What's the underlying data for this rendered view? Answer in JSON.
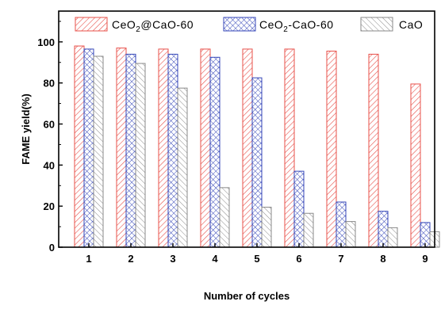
{
  "chart_data": {
    "type": "bar",
    "xlabel": "Number of cycles",
    "ylabel": "FAME yield(%)",
    "categories": [
      "1",
      "2",
      "3",
      "4",
      "5",
      "6",
      "7",
      "8",
      "9"
    ],
    "ylim": [
      0,
      115
    ],
    "yticks": [
      0,
      20,
      40,
      60,
      80,
      100
    ],
    "grid": false,
    "legend_position": "top",
    "series": [
      {
        "name": "CeO2@CaO-60",
        "legend_parts": [
          "CeO",
          "2",
          "@CaO-60"
        ],
        "color": "#e8504a",
        "pattern": "diagonal",
        "values": [
          98,
          97,
          96.5,
          96.5,
          96.5,
          96.5,
          95.5,
          94,
          79.5
        ]
      },
      {
        "name": "CeO2-CaO-60",
        "legend_parts": [
          "CeO",
          "2",
          "-CaO-60"
        ],
        "color": "#3446b8",
        "pattern": "crosshatch",
        "values": [
          96.5,
          94,
          94,
          92.5,
          82.5,
          37,
          22,
          17.5,
          12
        ]
      },
      {
        "name": "CaO",
        "legend_parts": [
          "CaO",
          "",
          ""
        ],
        "color": "#8a8a8a",
        "pattern": "backdiagonal",
        "values": [
          93,
          89.5,
          77.5,
          29,
          19.5,
          16.5,
          12.5,
          9.5,
          7.5
        ]
      }
    ]
  }
}
